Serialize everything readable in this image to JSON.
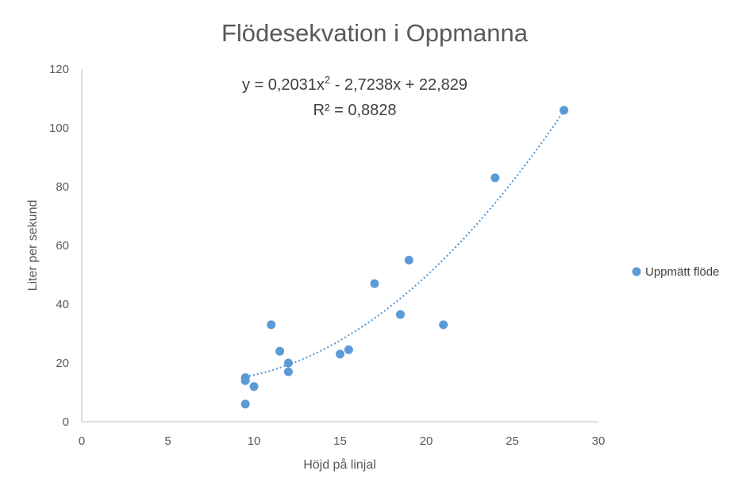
{
  "chart_data": {
    "type": "scatter",
    "title": "Flödesekvation i Oppmanna",
    "xlabel": "Höjd på linjal",
    "ylabel": "Liter per sekund",
    "xlim": [
      0,
      30
    ],
    "ylim": [
      0,
      120
    ],
    "x_ticks": [
      "0",
      "5",
      "10",
      "15",
      "20",
      "25",
      "30"
    ],
    "y_ticks": [
      "0",
      "20",
      "40",
      "60",
      "80",
      "100",
      "120"
    ],
    "grid": false,
    "legend_position": "right",
    "series": [
      {
        "name": "Uppmätt flöde",
        "color": "#5b9bd5",
        "x": [
          9.5,
          9.5,
          9.5,
          10,
          11,
          11.5,
          12,
          12,
          15,
          15.5,
          17,
          18.5,
          19,
          21,
          24,
          28
        ],
        "y": [
          6,
          14,
          15,
          12,
          33,
          24,
          20,
          17,
          23,
          24.5,
          47,
          36.5,
          55,
          33,
          83,
          106
        ]
      }
    ],
    "trendline": {
      "type": "polynomial",
      "order": 2,
      "coefficients": [
        0.2031,
        -2.7238,
        22.829
      ],
      "x_range": [
        9.5,
        28
      ],
      "color": "#5b9bd5",
      "style": "dotted",
      "equation": {
        "prefix": "y = 0,2031x",
        "superscript": "2",
        "suffix": " - 2,7238x + 22,829"
      },
      "r_squared": "R² = 0,8828"
    }
  }
}
